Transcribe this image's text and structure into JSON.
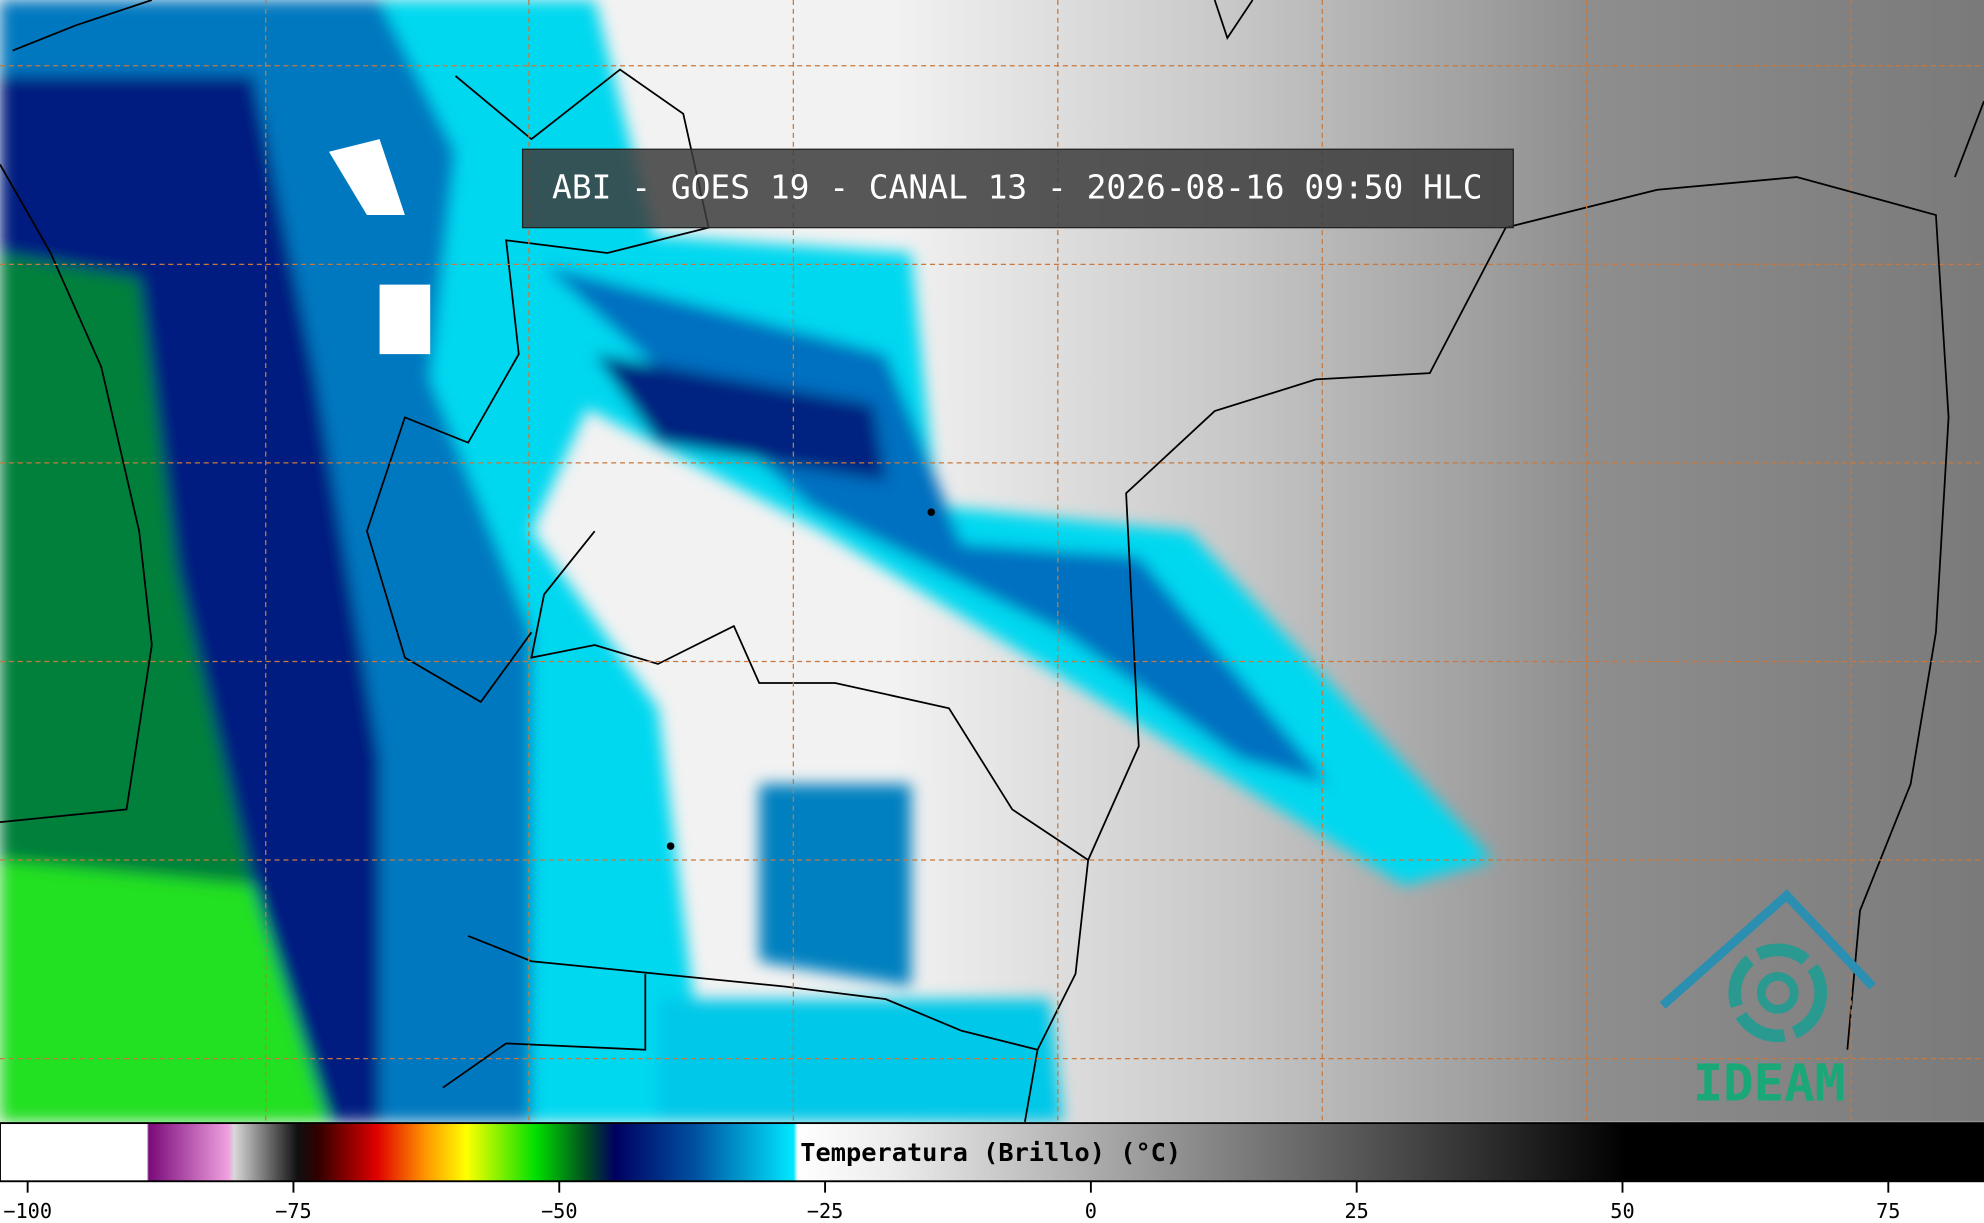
{
  "title": "ABI - GOES 19 - CANAL 13 - 2026-08-16 09:50 HLC",
  "colorbar": {
    "label": "Temperatura (Brillo) (°C)",
    "xlim": [
      -102.6,
      84
    ],
    "xticks": [
      {
        "value": -100,
        "label": "−100"
      },
      {
        "value": -75,
        "label": "−75"
      },
      {
        "value": -50,
        "label": "−50"
      },
      {
        "value": -25,
        "label": "−25"
      },
      0,
      25,
      50,
      75
    ]
  },
  "logo": "IDEAM"
}
